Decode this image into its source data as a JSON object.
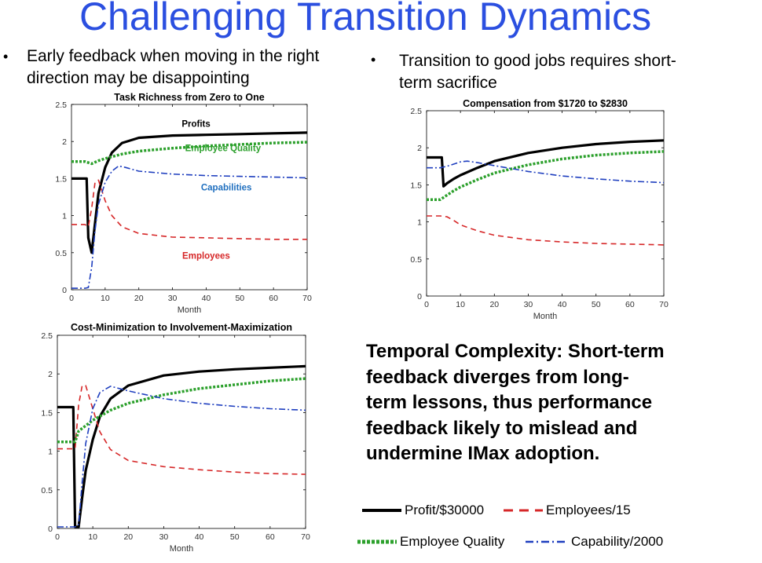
{
  "slide": {
    "title": "Challenging Transition Dynamics",
    "bullet_left": "Early feedback when moving in the right direction may be disappointing",
    "bullet_left_line1": "Early feedback when moving in the right",
    "bullet_left_line2": "direction may be disappointing",
    "bullet_right_line1": "Transition to good jobs requires short-",
    "bullet_right_line2": "term sacrifice",
    "bullet_symbol": "•",
    "note": "Temporal Complexity: Short-term feedback diverges from long-term lessons, thus performance feedback likely to mislead and undermine IMax adoption.",
    "note_lines": [
      "Temporal Complexity: Short-term",
      "feedback diverges from long-",
      "term lessons, thus performance",
      "feedback likely to mislead and",
      "undermine IMax adoption."
    ]
  },
  "legend": {
    "items": [
      {
        "label": "Profit/$30000",
        "color": "#000000",
        "style": "solid"
      },
      {
        "label": "Employees/15",
        "color": "#d62728",
        "style": "dash"
      },
      {
        "label": "Employee Quality",
        "color": "#2ca02c",
        "style": "dot"
      },
      {
        "label": "Capability/2000",
        "color": "#1f3fbf",
        "style": "dashdot"
      }
    ]
  },
  "colors": {
    "title": "#2b4fe0",
    "profit": "#000000",
    "employees": "#d62728",
    "quality": "#2ca02c",
    "capability": "#1f3fbf"
  },
  "chart_data": [
    {
      "type": "line",
      "title": "Task Richness from Zero to One",
      "xlabel": "Month",
      "ylabel": "",
      "xlim": [
        0,
        70
      ],
      "ylim": [
        0,
        2.5
      ],
      "xticks": [
        0,
        10,
        20,
        30,
        40,
        50,
        60,
        70
      ],
      "yticks": [
        0,
        0.5,
        1,
        1.5,
        2,
        2.5
      ],
      "inline_labels": [
        {
          "text": "Profits",
          "x": 37,
          "y": 2.2,
          "color": "#000000"
        },
        {
          "text": "Employee Quality",
          "x": 45,
          "y": 1.87,
          "color": "#2ca02c"
        },
        {
          "text": "Capabilities",
          "x": 46,
          "y": 1.34,
          "color": "#1f6fbf"
        },
        {
          "text": "Employees",
          "x": 40,
          "y": 0.42,
          "color": "#d62728"
        }
      ],
      "series": [
        {
          "key": "profit",
          "x": [
            0,
            4,
            4.5,
            5,
            6,
            7,
            8,
            10,
            12,
            15,
            20,
            30,
            40,
            50,
            60,
            70
          ],
          "y": [
            1.5,
            1.5,
            1.5,
            0.7,
            0.5,
            0.9,
            1.3,
            1.65,
            1.85,
            1.98,
            2.05,
            2.08,
            2.09,
            2.1,
            2.11,
            2.12
          ]
        },
        {
          "key": "employees",
          "x": [
            0,
            4,
            5,
            6,
            7,
            8,
            10,
            12,
            15,
            20,
            30,
            40,
            50,
            60,
            70
          ],
          "y": [
            0.88,
            0.88,
            0.85,
            1.1,
            1.45,
            1.48,
            1.2,
            1.0,
            0.85,
            0.76,
            0.71,
            0.7,
            0.69,
            0.68,
            0.68
          ]
        },
        {
          "key": "quality",
          "x": [
            0,
            4,
            6,
            8,
            10,
            15,
            20,
            30,
            40,
            50,
            60,
            70
          ],
          "y": [
            1.73,
            1.73,
            1.7,
            1.74,
            1.77,
            1.83,
            1.87,
            1.91,
            1.94,
            1.96,
            1.98,
            1.99
          ]
        },
        {
          "key": "capability",
          "x": [
            0,
            4,
            5,
            6,
            7,
            8,
            10,
            12,
            14,
            16,
            20,
            30,
            40,
            50,
            60,
            70
          ],
          "y": [
            0.02,
            0.02,
            0.03,
            0.3,
            0.8,
            1.15,
            1.45,
            1.6,
            1.67,
            1.65,
            1.6,
            1.56,
            1.54,
            1.53,
            1.52,
            1.51
          ]
        }
      ]
    },
    {
      "type": "line",
      "title": "Compensation from $1720 to $2830",
      "xlabel": "Month",
      "ylabel": "",
      "xlim": [
        0,
        70
      ],
      "ylim": [
        0,
        2.5
      ],
      "xticks": [
        0,
        10,
        20,
        30,
        40,
        50,
        60,
        70
      ],
      "yticks": [
        0,
        0.5,
        1,
        1.5,
        2,
        2.5
      ],
      "series": [
        {
          "key": "profit",
          "x": [
            0,
            4,
            4.5,
            5,
            6,
            8,
            10,
            15,
            20,
            30,
            40,
            50,
            60,
            70
          ],
          "y": [
            1.87,
            1.87,
            1.87,
            1.48,
            1.52,
            1.58,
            1.63,
            1.73,
            1.82,
            1.93,
            2.0,
            2.05,
            2.08,
            2.1
          ]
        },
        {
          "key": "employees",
          "x": [
            0,
            4,
            6,
            8,
            10,
            15,
            20,
            30,
            40,
            50,
            60,
            70
          ],
          "y": [
            1.08,
            1.08,
            1.07,
            1.02,
            0.96,
            0.88,
            0.82,
            0.76,
            0.73,
            0.71,
            0.7,
            0.69
          ]
        },
        {
          "key": "quality",
          "x": [
            0,
            4,
            6,
            8,
            10,
            15,
            20,
            30,
            40,
            50,
            60,
            70
          ],
          "y": [
            1.3,
            1.3,
            1.36,
            1.42,
            1.47,
            1.57,
            1.66,
            1.77,
            1.85,
            1.9,
            1.93,
            1.95
          ]
        },
        {
          "key": "capability",
          "x": [
            0,
            4,
            6,
            8,
            10,
            12,
            15,
            20,
            30,
            40,
            50,
            60,
            70
          ],
          "y": [
            1.73,
            1.73,
            1.75,
            1.78,
            1.81,
            1.82,
            1.8,
            1.76,
            1.68,
            1.62,
            1.58,
            1.55,
            1.53
          ]
        }
      ]
    },
    {
      "type": "line",
      "title": "Cost-Minimization to Involvement-Maximization",
      "xlabel": "Month",
      "ylabel": "",
      "xlim": [
        0,
        70
      ],
      "ylim": [
        0,
        2.5
      ],
      "xticks": [
        0,
        10,
        20,
        30,
        40,
        50,
        60,
        70
      ],
      "yticks": [
        0,
        0.5,
        1,
        1.5,
        2,
        2.5
      ],
      "series": [
        {
          "key": "profit",
          "x": [
            0,
            4,
            4.5,
            5,
            6,
            7,
            8,
            10,
            12,
            15,
            20,
            30,
            40,
            50,
            60,
            70
          ],
          "y": [
            1.57,
            1.57,
            1.57,
            0.02,
            0.02,
            0.4,
            0.75,
            1.15,
            1.45,
            1.68,
            1.85,
            1.98,
            2.03,
            2.06,
            2.08,
            2.1
          ]
        },
        {
          "key": "employees",
          "x": [
            0,
            4,
            5,
            6,
            7,
            8,
            10,
            12,
            15,
            20,
            30,
            40,
            50,
            60,
            70
          ],
          "y": [
            1.03,
            1.03,
            1.03,
            1.6,
            1.85,
            1.85,
            1.55,
            1.25,
            1.02,
            0.88,
            0.8,
            0.76,
            0.73,
            0.71,
            0.7
          ]
        },
        {
          "key": "quality",
          "x": [
            0,
            5,
            6,
            8,
            10,
            15,
            20,
            30,
            40,
            50,
            60,
            70
          ],
          "y": [
            1.12,
            1.12,
            1.26,
            1.33,
            1.4,
            1.53,
            1.62,
            1.73,
            1.81,
            1.86,
            1.91,
            1.94
          ]
        },
        {
          "key": "capability",
          "x": [
            0,
            5,
            6,
            7,
            8,
            10,
            12,
            15,
            20,
            30,
            40,
            50,
            60,
            70
          ],
          "y": [
            0.02,
            0.02,
            0.05,
            0.6,
            1.1,
            1.55,
            1.76,
            1.84,
            1.78,
            1.68,
            1.62,
            1.58,
            1.55,
            1.53
          ]
        }
      ]
    }
  ]
}
